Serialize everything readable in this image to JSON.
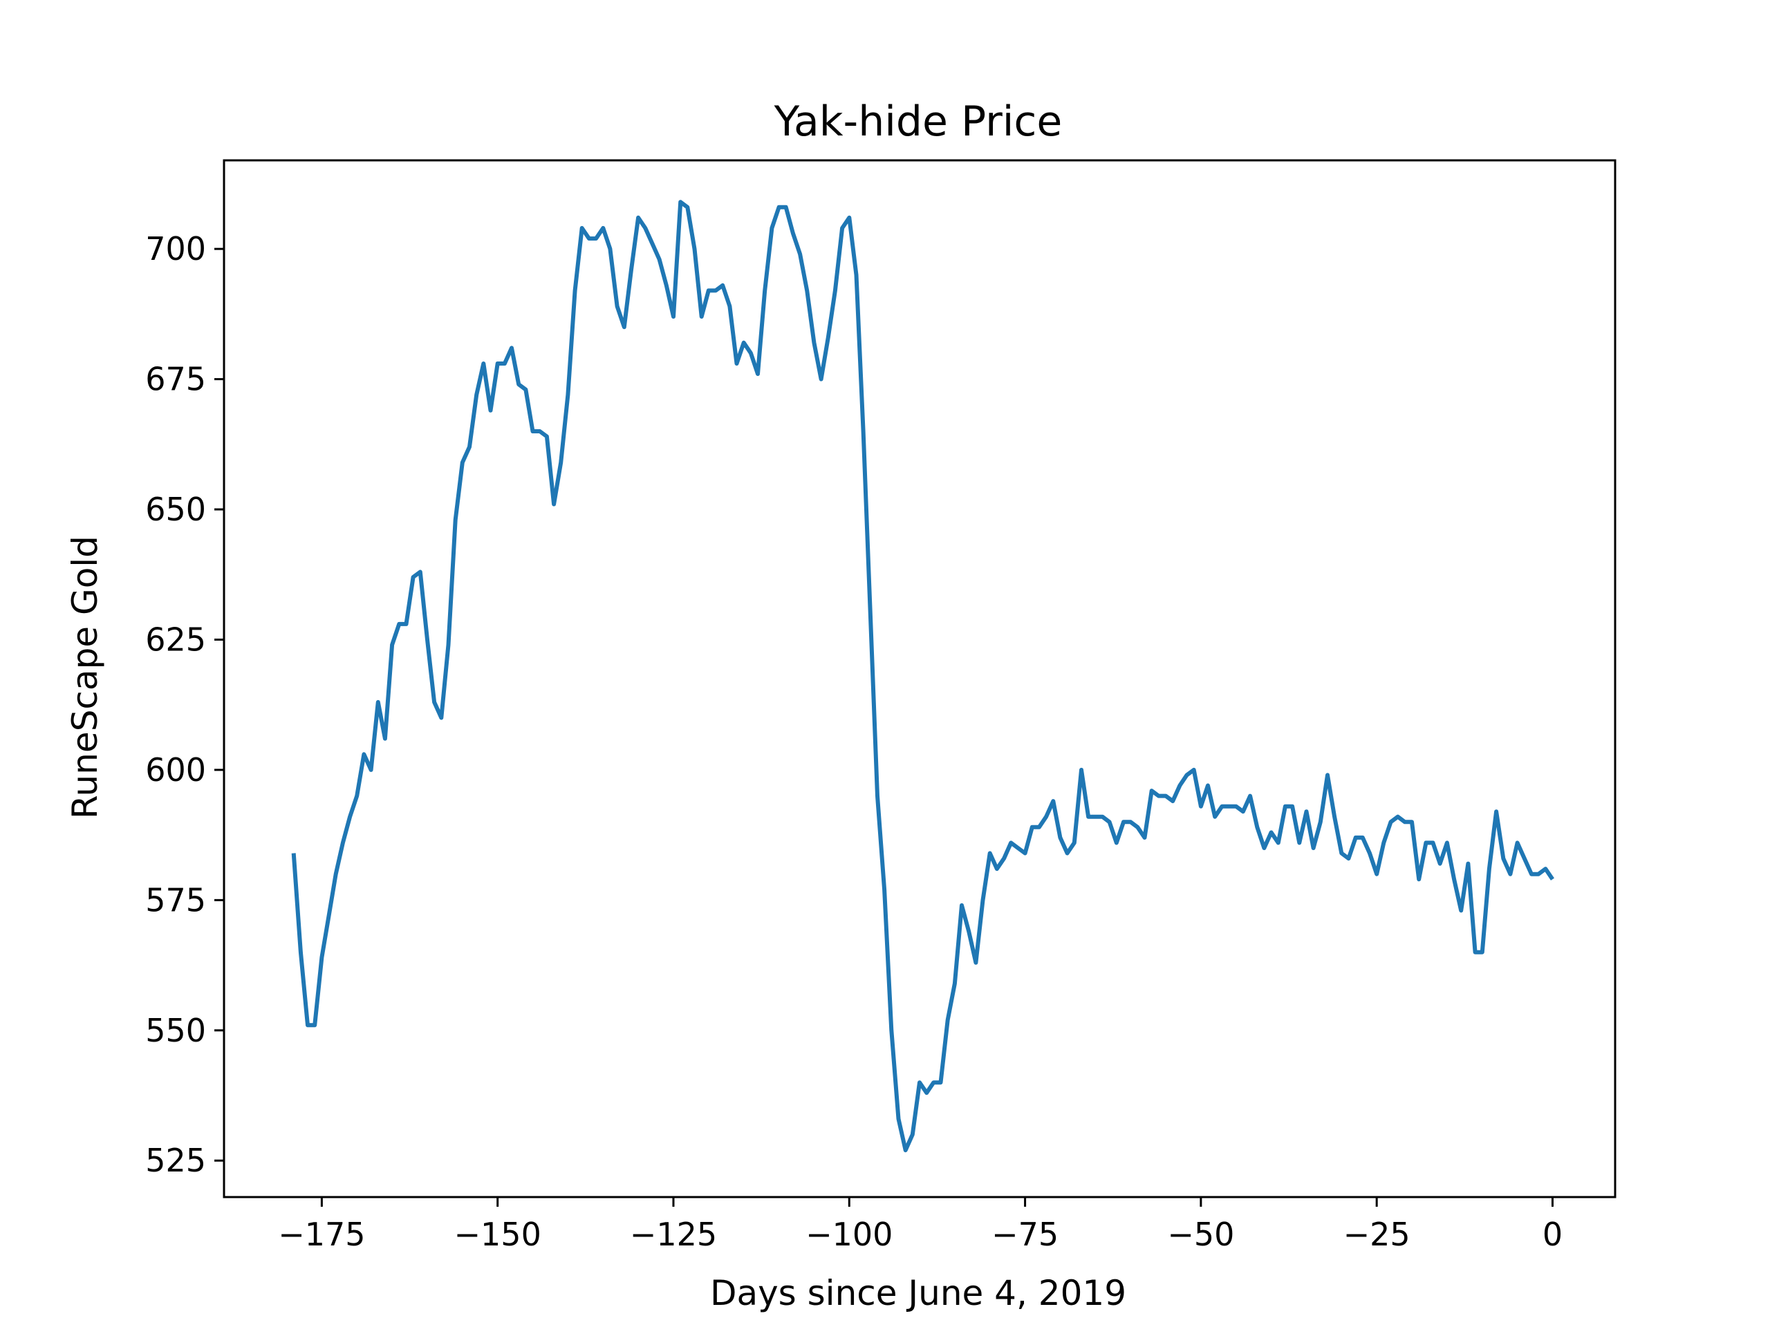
{
  "chart_data": {
    "type": "line",
    "title": "Yak-hide Price",
    "xlabel": "Days since June 4, 2019",
    "ylabel": "RuneScape Gold",
    "xlim": [
      -188.9,
      8.9
    ],
    "ylim": [
      518,
      717
    ],
    "xticks": [
      -175,
      -150,
      -125,
      -100,
      -75,
      -50,
      -25,
      0
    ],
    "xtick_labels": [
      "−175",
      "−150",
      "−125",
      "−100",
      "−75",
      "−50",
      "−25",
      "0"
    ],
    "yticks": [
      525,
      550,
      575,
      600,
      625,
      650,
      675,
      700
    ],
    "ytick_labels": [
      "525",
      "550",
      "575",
      "600",
      "625",
      "650",
      "675",
      "700"
    ],
    "grid": false,
    "legend": "none",
    "series": [
      {
        "color": "#1f77b4",
        "points": [
          [
            -179,
            584
          ],
          [
            -178,
            565
          ],
          [
            -177,
            551
          ],
          [
            -176,
            551
          ],
          [
            -175,
            564
          ],
          [
            -174,
            572
          ],
          [
            -173,
            580
          ],
          [
            -172,
            586
          ],
          [
            -171,
            591
          ],
          [
            -170,
            595
          ],
          [
            -169,
            603
          ],
          [
            -168,
            600
          ],
          [
            -167,
            613
          ],
          [
            -166,
            606
          ],
          [
            -165,
            624
          ],
          [
            -164,
            628
          ],
          [
            -163,
            628
          ],
          [
            -162,
            637
          ],
          [
            -161,
            638
          ],
          [
            -160,
            625
          ],
          [
            -159,
            613
          ],
          [
            -158,
            610
          ],
          [
            -157,
            624
          ],
          [
            -156,
            648
          ],
          [
            -155,
            659
          ],
          [
            -154,
            662
          ],
          [
            -153,
            672
          ],
          [
            -152,
            678
          ],
          [
            -151,
            669
          ],
          [
            -150,
            678
          ],
          [
            -149,
            678
          ],
          [
            -148,
            681
          ],
          [
            -147,
            674
          ],
          [
            -146,
            673
          ],
          [
            -145,
            665
          ],
          [
            -144,
            665
          ],
          [
            -143,
            664
          ],
          [
            -142,
            651
          ],
          [
            -141,
            659
          ],
          [
            -140,
            672
          ],
          [
            -139,
            692
          ],
          [
            -138,
            704
          ],
          [
            -137,
            702
          ],
          [
            -136,
            702
          ],
          [
            -135,
            704
          ],
          [
            -134,
            700
          ],
          [
            -133,
            689
          ],
          [
            -132,
            685
          ],
          [
            -131,
            696
          ],
          [
            -130,
            706
          ],
          [
            -129,
            704
          ],
          [
            -128,
            701
          ],
          [
            -127,
            698
          ],
          [
            -126,
            693
          ],
          [
            -125,
            687
          ],
          [
            -124,
            709
          ],
          [
            -123,
            708
          ],
          [
            -122,
            700
          ],
          [
            -121,
            687
          ],
          [
            -120,
            692
          ],
          [
            -119,
            692
          ],
          [
            -118,
            693
          ],
          [
            -117,
            689
          ],
          [
            -116,
            678
          ],
          [
            -115,
            682
          ],
          [
            -114,
            680
          ],
          [
            -113,
            676
          ],
          [
            -112,
            692
          ],
          [
            -111,
            704
          ],
          [
            -110,
            708
          ],
          [
            -109,
            708
          ],
          [
            -108,
            703
          ],
          [
            -107,
            699
          ],
          [
            -106,
            692
          ],
          [
            -105,
            682
          ],
          [
            -104,
            675
          ],
          [
            -103,
            683
          ],
          [
            -102,
            692
          ],
          [
            -101,
            704
          ],
          [
            -100,
            706
          ],
          [
            -99,
            695
          ],
          [
            -98,
            665
          ],
          [
            -97,
            630
          ],
          [
            -96,
            595
          ],
          [
            -95,
            577
          ],
          [
            -94,
            550
          ],
          [
            -93,
            533
          ],
          [
            -92,
            527
          ],
          [
            -91,
            530
          ],
          [
            -90,
            540
          ],
          [
            -89,
            538
          ],
          [
            -88,
            540
          ],
          [
            -87,
            540
          ],
          [
            -86,
            552
          ],
          [
            -85,
            559
          ],
          [
            -84,
            574
          ],
          [
            -83,
            569
          ],
          [
            -82,
            563
          ],
          [
            -81,
            575
          ],
          [
            -80,
            584
          ],
          [
            -79,
            581
          ],
          [
            -78,
            583
          ],
          [
            -77,
            586
          ],
          [
            -76,
            585
          ],
          [
            -75,
            584
          ],
          [
            -74,
            589
          ],
          [
            -73,
            589
          ],
          [
            -72,
            591
          ],
          [
            -71,
            594
          ],
          [
            -70,
            587
          ],
          [
            -69,
            584
          ],
          [
            -68,
            586
          ],
          [
            -67,
            600
          ],
          [
            -66,
            591
          ],
          [
            -65,
            591
          ],
          [
            -64,
            591
          ],
          [
            -63,
            590
          ],
          [
            -62,
            586
          ],
          [
            -61,
            590
          ],
          [
            -60,
            590
          ],
          [
            -59,
            589
          ],
          [
            -58,
            587
          ],
          [
            -57,
            596
          ],
          [
            -56,
            595
          ],
          [
            -55,
            595
          ],
          [
            -54,
            594
          ],
          [
            -53,
            597
          ],
          [
            -52,
            599
          ],
          [
            -51,
            600
          ],
          [
            -50,
            593
          ],
          [
            -49,
            597
          ],
          [
            -48,
            591
          ],
          [
            -47,
            593
          ],
          [
            -46,
            593
          ],
          [
            -45,
            593
          ],
          [
            -44,
            592
          ],
          [
            -43,
            595
          ],
          [
            -42,
            589
          ],
          [
            -41,
            585
          ],
          [
            -40,
            588
          ],
          [
            -39,
            586
          ],
          [
            -38,
            593
          ],
          [
            -37,
            593
          ],
          [
            -36,
            586
          ],
          [
            -35,
            592
          ],
          [
            -34,
            585
          ],
          [
            -33,
            590
          ],
          [
            -32,
            599
          ],
          [
            -31,
            591
          ],
          [
            -30,
            584
          ],
          [
            -29,
            583
          ],
          [
            -28,
            587
          ],
          [
            -27,
            587
          ],
          [
            -26,
            584
          ],
          [
            -25,
            580
          ],
          [
            -24,
            586
          ],
          [
            -23,
            590
          ],
          [
            -22,
            591
          ],
          [
            -21,
            590
          ],
          [
            -20,
            590
          ],
          [
            -19,
            579
          ],
          [
            -18,
            586
          ],
          [
            -17,
            586
          ],
          [
            -16,
            582
          ],
          [
            -15,
            586
          ],
          [
            -14,
            579
          ],
          [
            -13,
            573
          ],
          [
            -12,
            582
          ],
          [
            -11,
            565
          ],
          [
            -10,
            565
          ],
          [
            -9,
            581
          ],
          [
            -8,
            592
          ],
          [
            -7,
            583
          ],
          [
            -6,
            580
          ],
          [
            -5,
            586
          ],
          [
            -4,
            583
          ],
          [
            -3,
            580
          ],
          [
            -2,
            580
          ],
          [
            -1,
            581
          ],
          [
            0,
            579
          ]
        ]
      }
    ]
  }
}
